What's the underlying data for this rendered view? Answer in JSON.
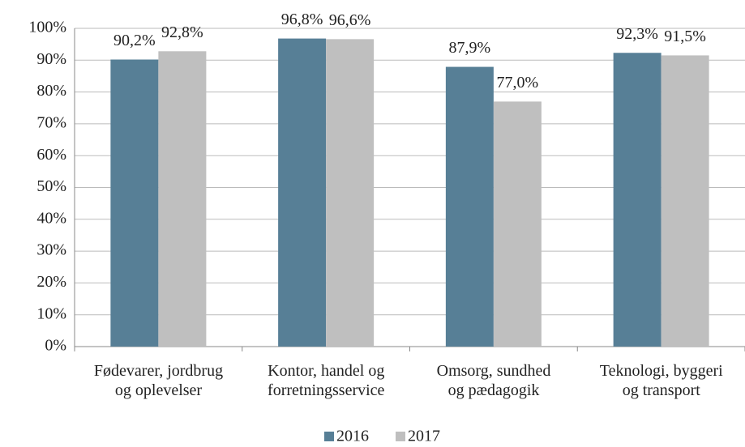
{
  "chart_data": {
    "type": "bar",
    "categories": [
      "Fødevarer, jordbrug\nog oplevelser",
      "Kontor, handel og\nforretningsservice",
      "Omsorg, sundhed\nog pædagogik",
      "Teknologi, byggeri\nog transport"
    ],
    "series": [
      {
        "name": "2016",
        "color": "#577f96",
        "values": [
          90.2,
          96.8,
          87.9,
          92.3
        ],
        "value_labels": [
          "90,2%",
          "96,8%",
          "87,9%",
          "92,3%"
        ]
      },
      {
        "name": "2017",
        "color": "#bfbfbf",
        "values": [
          92.8,
          96.6,
          77.0,
          91.5
        ],
        "value_labels": [
          "92,8%",
          "96,6%",
          "77,0%",
          "91,5%"
        ]
      }
    ],
    "ylim": [
      0,
      100
    ],
    "yticks": [
      {
        "value": 0,
        "label": "0%"
      },
      {
        "value": 10,
        "label": "10%"
      },
      {
        "value": 20,
        "label": "20%"
      },
      {
        "value": 30,
        "label": "30%"
      },
      {
        "value": 40,
        "label": "40%"
      },
      {
        "value": 50,
        "label": "50%"
      },
      {
        "value": 60,
        "label": "60%"
      },
      {
        "value": 70,
        "label": "70%"
      },
      {
        "value": 80,
        "label": "80%"
      },
      {
        "value": 90,
        "label": "90%"
      },
      {
        "value": 100,
        "label": "100%"
      }
    ],
    "grid": true,
    "legend": "bottom"
  }
}
